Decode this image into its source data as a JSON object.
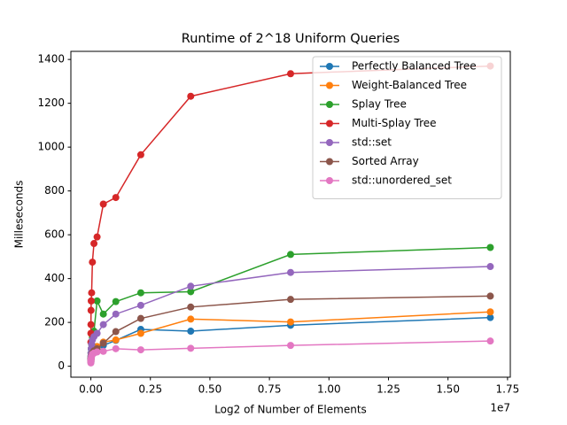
{
  "chart_data": {
    "type": "line",
    "title": "Runtime of 2^18 Uniform Queries",
    "x_label": "Log2 of Number of Elements",
    "y_label": "Milleseconds",
    "x_offset_label": "1e7",
    "x": [
      1024,
      2048,
      4096,
      8192,
      16384,
      32768,
      65536,
      131072,
      262144,
      524288,
      1048576,
      2097152,
      4194304,
      8388608,
      16777216
    ],
    "series": [
      {
        "name": "Perfectly Balanced Tree",
        "color": "#1f77b4",
        "values": [
          18,
          22,
          28,
          35,
          42,
          50,
          60,
          70,
          80,
          95,
          118,
          168,
          160,
          187,
          222
        ]
      },
      {
        "name": "Weight-Balanced Tree",
        "color": "#ff7f0e",
        "values": [
          20,
          25,
          30,
          38,
          45,
          55,
          65,
          75,
          90,
          110,
          120,
          150,
          215,
          202,
          248
        ]
      },
      {
        "name": "Splay Tree",
        "color": "#2ca02c",
        "values": [
          25,
          35,
          45,
          60,
          80,
          100,
          130,
          160,
          298,
          238,
          295,
          335,
          340,
          510,
          542
        ]
      },
      {
        "name": "Multi-Splay Tree",
        "color": "#d62728",
        "values": [
          110,
          150,
          190,
          255,
          298,
          335,
          475,
          560,
          590,
          740,
          770,
          965,
          1232,
          1335,
          1370
        ]
      },
      {
        "name": "std::set",
        "color": "#9467bd",
        "values": [
          25,
          35,
          45,
          60,
          80,
          100,
          120,
          135,
          150,
          190,
          238,
          278,
          365,
          428,
          455
        ]
      },
      {
        "name": "Sorted Array",
        "color": "#8c564b",
        "values": [
          20,
          25,
          30,
          35,
          40,
          50,
          60,
          70,
          80,
          105,
          158,
          218,
          270,
          305,
          320
        ]
      },
      {
        "name": "std::unordered_set",
        "color": "#e377c2",
        "values": [
          15,
          20,
          25,
          30,
          38,
          45,
          55,
          60,
          65,
          68,
          80,
          75,
          82,
          95,
          115
        ]
      }
    ],
    "xlim": [
      -838861,
      17616077
    ],
    "xticks": [
      {
        "value": 0,
        "label": "0.00"
      },
      {
        "value": 2500000,
        "label": "0.25"
      },
      {
        "value": 5000000,
        "label": "0.50"
      },
      {
        "value": 7500000,
        "label": "0.75"
      },
      {
        "value": 10000000,
        "label": "1.00"
      },
      {
        "value": 12500000,
        "label": "1.25"
      },
      {
        "value": 15000000,
        "label": "1.50"
      },
      {
        "value": 17500000,
        "label": "1.75"
      }
    ],
    "ylim": [
      -50,
      1437
    ],
    "yticks": [
      0,
      200,
      400,
      600,
      800,
      1000,
      1200,
      1400
    ],
    "legend": "upper right",
    "grid": false
  }
}
